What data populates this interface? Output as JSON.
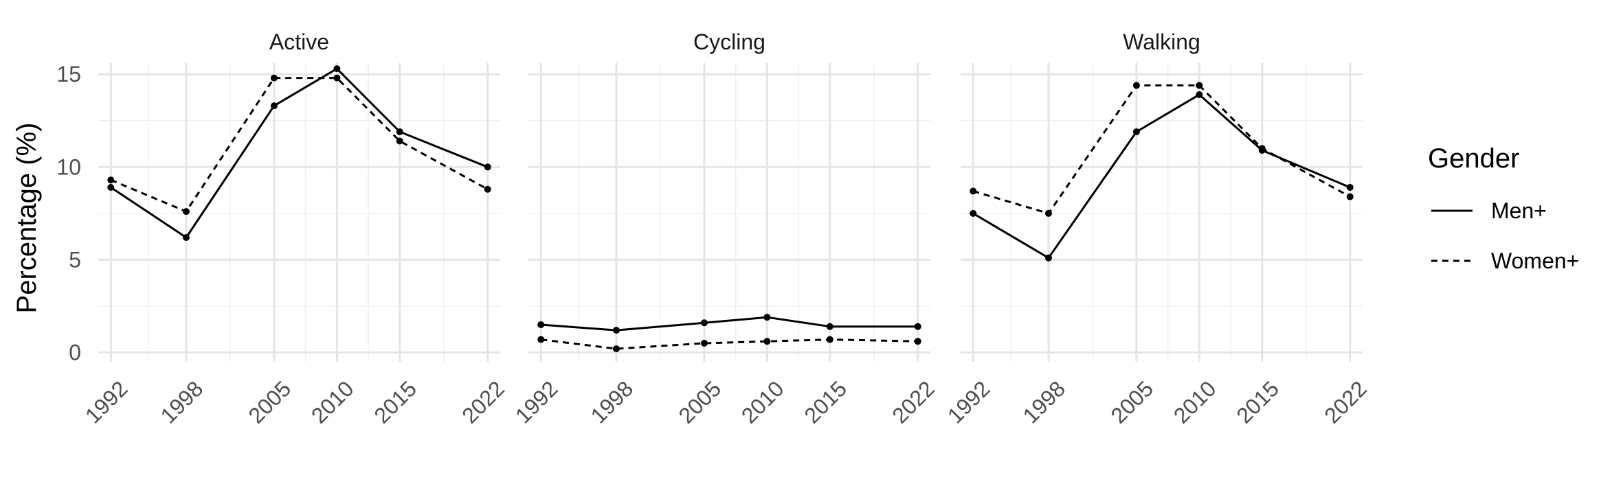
{
  "chart_data": {
    "type": "line",
    "ylabel": "Percentage (%)",
    "ylim": [
      -0.5,
      15.6
    ],
    "xlim": [
      1991,
      2023
    ],
    "y_ticks": [
      0,
      5,
      10,
      15
    ],
    "x_ticks": [
      1992,
      1998,
      2005,
      2010,
      2015,
      2022
    ],
    "grid": true,
    "legend": {
      "title": "Gender",
      "placement": "right",
      "entries": [
        {
          "label": "Men+",
          "linetype": "solid"
        },
        {
          "label": "Women+",
          "linetype": "dashed"
        }
      ]
    },
    "panels": [
      {
        "title": "Active",
        "series": [
          {
            "name": "Men+",
            "linetype": "solid",
            "x": [
              1992,
              1998,
              2005,
              2010,
              2015,
              2022
            ],
            "y": [
              8.9,
              6.2,
              13.3,
              15.3,
              11.9,
              10.0
            ]
          },
          {
            "name": "Women+",
            "linetype": "dashed",
            "x": [
              1992,
              1998,
              2005,
              2010,
              2015,
              2022
            ],
            "y": [
              9.3,
              7.6,
              14.8,
              14.8,
              11.4,
              8.8
            ]
          }
        ]
      },
      {
        "title": "Cycling",
        "series": [
          {
            "name": "Men+",
            "linetype": "solid",
            "x": [
              1992,
              1998,
              2005,
              2010,
              2015,
              2022
            ],
            "y": [
              1.5,
              1.2,
              1.6,
              1.9,
              1.4,
              1.4
            ]
          },
          {
            "name": "Women+",
            "linetype": "dashed",
            "x": [
              1992,
              1998,
              2005,
              2010,
              2015,
              2022
            ],
            "y": [
              0.7,
              0.2,
              0.5,
              0.6,
              0.7,
              0.6
            ]
          }
        ]
      },
      {
        "title": "Walking",
        "series": [
          {
            "name": "Men+",
            "linetype": "solid",
            "x": [
              1992,
              1998,
              2005,
              2010,
              2015,
              2022
            ],
            "y": [
              7.5,
              5.1,
              11.9,
              13.9,
              10.9,
              8.9
            ]
          },
          {
            "name": "Women+",
            "linetype": "dashed",
            "x": [
              1992,
              1998,
              2005,
              2010,
              2015,
              2022
            ],
            "y": [
              8.7,
              7.5,
              14.4,
              14.4,
              11.0,
              8.4
            ]
          }
        ]
      }
    ]
  }
}
